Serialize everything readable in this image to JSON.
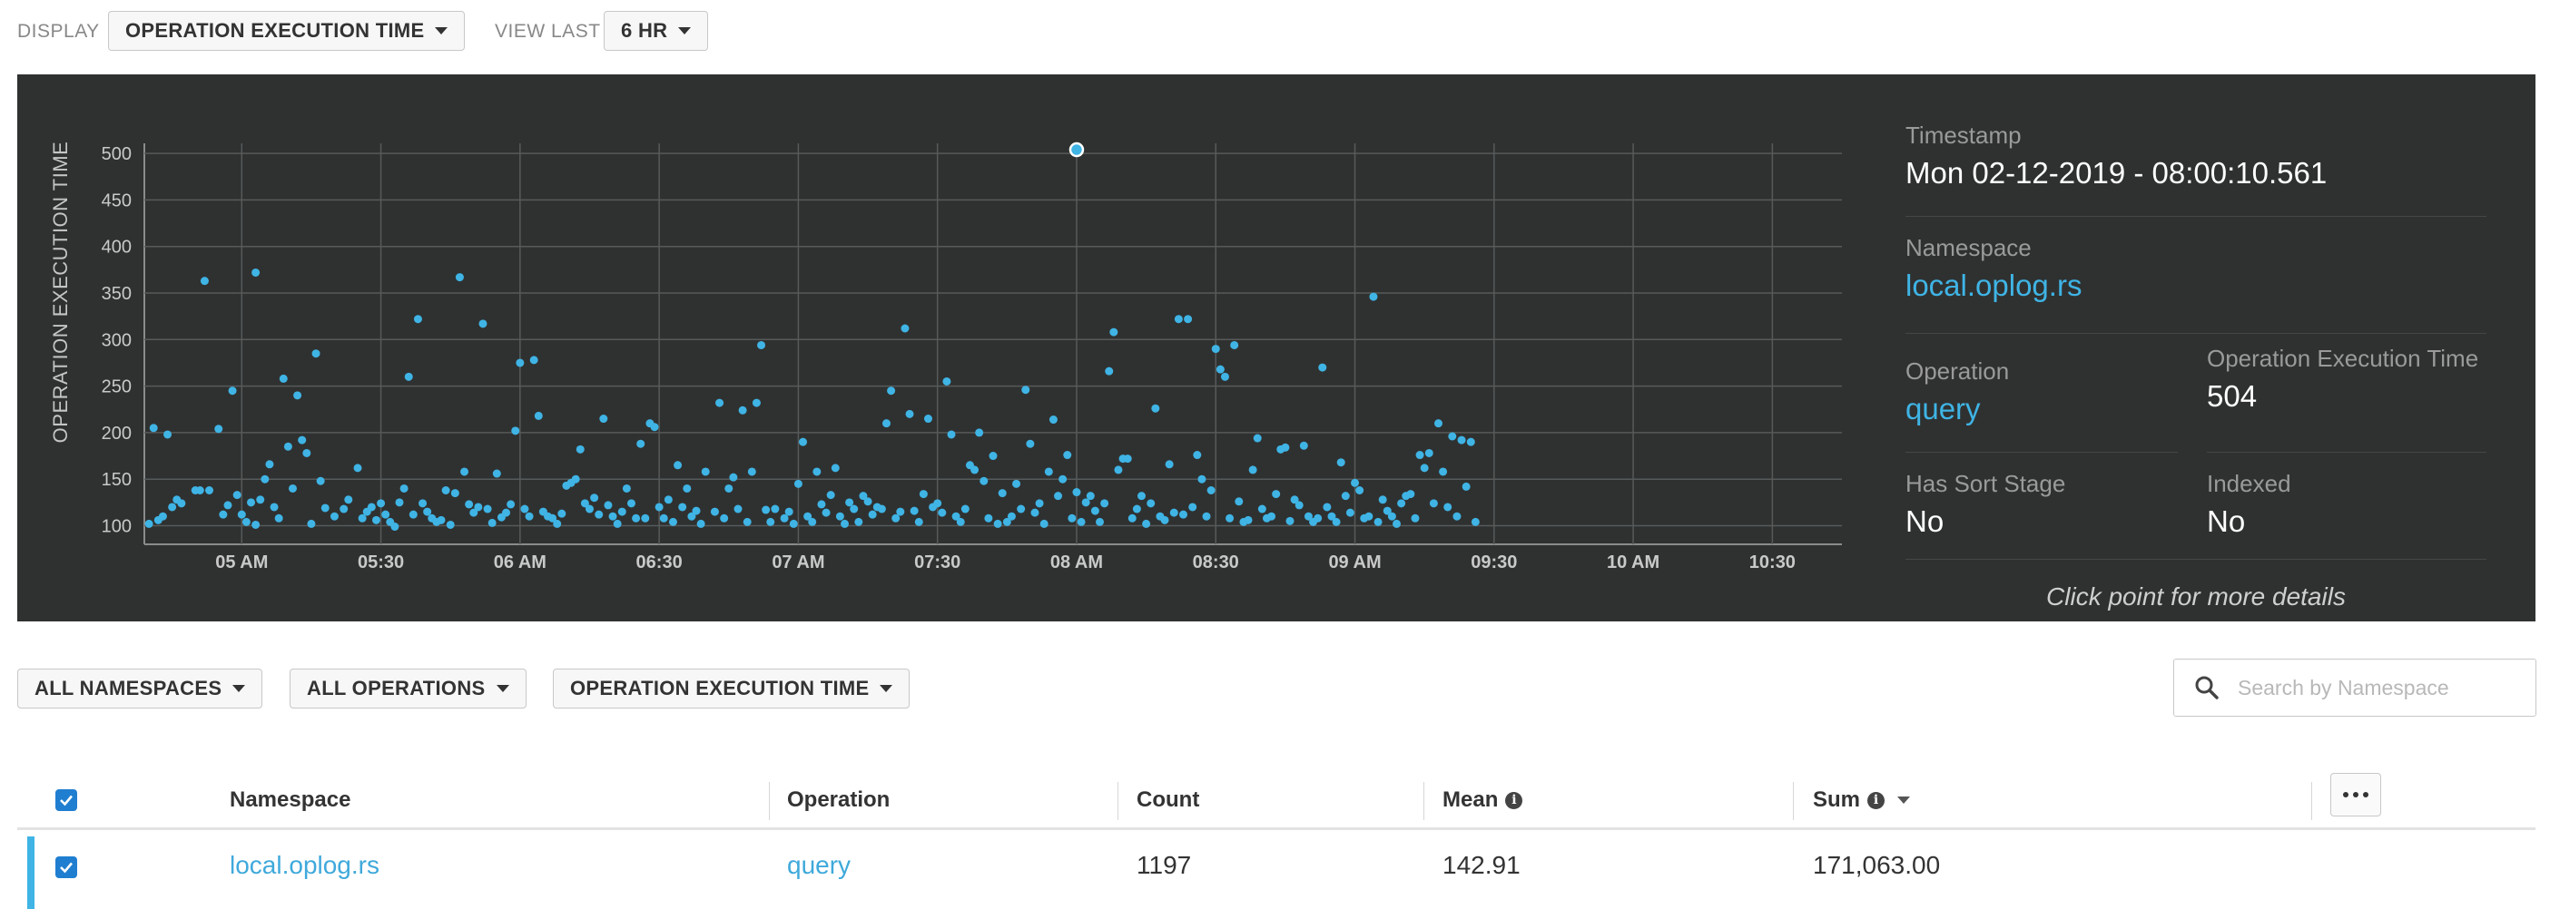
{
  "toolbar": {
    "display_label": "DISPLAY",
    "display_value": "OPERATION EXECUTION TIME",
    "view_last_label": "VIEW LAST",
    "view_last_value": "6 HR"
  },
  "chart_data": {
    "type": "scatter",
    "ylabel": "OPERATION EXECUTION TIME",
    "xlabel": "",
    "y_ticks": [
      "500",
      "450",
      "400",
      "350",
      "300",
      "250",
      "200",
      "150",
      "100"
    ],
    "x_ticks": [
      "05 AM",
      "05:30",
      "06 AM",
      "06:30",
      "07 AM",
      "07:30",
      "08 AM",
      "08:30",
      "09 AM",
      "09:30",
      "10 AM",
      "10:30"
    ],
    "ylim": [
      80,
      505
    ],
    "xlim": [
      "04:39",
      "10:45"
    ],
    "grid": true,
    "point_color": "#3fb4e5",
    "selected": {
      "x": "08:00",
      "y": 504
    },
    "points": [
      [
        "04:40",
        102
      ],
      [
        "04:41",
        205
      ],
      [
        "04:42",
        106
      ],
      [
        "04:43",
        110
      ],
      [
        "04:44",
        198
      ],
      [
        "04:45",
        120
      ],
      [
        "04:46",
        128
      ],
      [
        "04:47",
        124
      ],
      [
        "04:50",
        138
      ],
      [
        "04:51",
        138
      ],
      [
        "04:52",
        363
      ],
      [
        "04:53",
        138
      ],
      [
        "04:55",
        204
      ],
      [
        "04:56",
        112
      ],
      [
        "04:57",
        122
      ],
      [
        "04:58",
        245
      ],
      [
        "04:59",
        133
      ],
      [
        "05:00",
        112
      ],
      [
        "05:01",
        104
      ],
      [
        "05:02",
        125
      ],
      [
        "05:03",
        372
      ],
      [
        "05:03",
        101
      ],
      [
        "05:04",
        128
      ],
      [
        "05:05",
        150
      ],
      [
        "05:06",
        166
      ],
      [
        "05:07",
        120
      ],
      [
        "05:08",
        108
      ],
      [
        "05:09",
        258
      ],
      [
        "05:10",
        185
      ],
      [
        "05:11",
        140
      ],
      [
        "05:12",
        240
      ],
      [
        "05:13",
        192
      ],
      [
        "05:14",
        178
      ],
      [
        "05:15",
        102
      ],
      [
        "05:16",
        285
      ],
      [
        "05:17",
        148
      ],
      [
        "05:18",
        119
      ],
      [
        "05:20",
        110
      ],
      [
        "05:22",
        118
      ],
      [
        "05:23",
        128
      ],
      [
        "05:25",
        162
      ],
      [
        "05:26",
        108
      ],
      [
        "05:27",
        115
      ],
      [
        "05:28",
        120
      ],
      [
        "05:29",
        106
      ],
      [
        "05:30",
        124
      ],
      [
        "05:31",
        112
      ],
      [
        "05:32",
        104
      ],
      [
        "05:33",
        99
      ],
      [
        "05:34",
        125
      ],
      [
        "05:35",
        140
      ],
      [
        "05:36",
        260
      ],
      [
        "05:37",
        112
      ],
      [
        "05:38",
        322
      ],
      [
        "05:39",
        124
      ],
      [
        "05:40",
        115
      ],
      [
        "05:41",
        108
      ],
      [
        "05:42",
        104
      ],
      [
        "05:43",
        106
      ],
      [
        "05:44",
        138
      ],
      [
        "05:45",
        101
      ],
      [
        "05:46",
        135
      ],
      [
        "05:47",
        367
      ],
      [
        "05:48",
        158
      ],
      [
        "05:49",
        123
      ],
      [
        "05:50",
        114
      ],
      [
        "05:51",
        120
      ],
      [
        "05:52",
        317
      ],
      [
        "05:53",
        118
      ],
      [
        "05:54",
        103
      ],
      [
        "05:55",
        156
      ],
      [
        "05:56",
        109
      ],
      [
        "05:57",
        114
      ],
      [
        "05:58",
        123
      ],
      [
        "05:59",
        202
      ],
      [
        "06:00",
        275
      ],
      [
        "06:01",
        118
      ],
      [
        "06:02",
        110
      ],
      [
        "06:03",
        278
      ],
      [
        "06:04",
        218
      ],
      [
        "06:05",
        115
      ],
      [
        "06:06",
        110
      ],
      [
        "06:07",
        108
      ],
      [
        "06:08",
        102
      ],
      [
        "06:09",
        113
      ],
      [
        "06:10",
        143
      ],
      [
        "06:11",
        146
      ],
      [
        "06:12",
        150
      ],
      [
        "06:13",
        182
      ],
      [
        "06:14",
        124
      ],
      [
        "06:15",
        118
      ],
      [
        "06:16",
        130
      ],
      [
        "06:17",
        112
      ],
      [
        "06:18",
        215
      ],
      [
        "06:19",
        122
      ],
      [
        "06:20",
        110
      ],
      [
        "06:21",
        102
      ],
      [
        "06:22",
        115
      ],
      [
        "06:23",
        140
      ],
      [
        "06:24",
        124
      ],
      [
        "06:25",
        108
      ],
      [
        "06:26",
        188
      ],
      [
        "06:27",
        108
      ],
      [
        "06:28",
        210
      ],
      [
        "06:29",
        206
      ],
      [
        "06:30",
        120
      ],
      [
        "06:31",
        108
      ],
      [
        "06:32",
        128
      ],
      [
        "06:33",
        104
      ],
      [
        "06:34",
        165
      ],
      [
        "06:35",
        120
      ],
      [
        "06:36",
        140
      ],
      [
        "06:37",
        110
      ],
      [
        "06:38",
        116
      ],
      [
        "06:39",
        102
      ],
      [
        "06:40",
        158
      ],
      [
        "06:42",
        115
      ],
      [
        "06:43",
        232
      ],
      [
        "06:44",
        108
      ],
      [
        "06:45",
        140
      ],
      [
        "06:46",
        152
      ],
      [
        "06:47",
        118
      ],
      [
        "06:48",
        224
      ],
      [
        "06:49",
        104
      ],
      [
        "06:50",
        158
      ],
      [
        "06:51",
        232
      ],
      [
        "06:52",
        294
      ],
      [
        "06:53",
        117
      ],
      [
        "06:54",
        104
      ],
      [
        "06:55",
        118
      ],
      [
        "06:57",
        108
      ],
      [
        "06:58",
        115
      ],
      [
        "06:59",
        102
      ],
      [
        "07:00",
        145
      ],
      [
        "07:01",
        190
      ],
      [
        "07:02",
        110
      ],
      [
        "07:03",
        104
      ],
      [
        "07:04",
        158
      ],
      [
        "07:05",
        123
      ],
      [
        "07:06",
        114
      ],
      [
        "07:07",
        133
      ],
      [
        "07:08",
        162
      ],
      [
        "07:09",
        110
      ],
      [
        "07:10",
        102
      ],
      [
        "07:11",
        125
      ],
      [
        "07:12",
        118
      ],
      [
        "07:13",
        104
      ],
      [
        "07:14",
        132
      ],
      [
        "07:15",
        126
      ],
      [
        "07:16",
        112
      ],
      [
        "07:17",
        120
      ],
      [
        "07:18",
        118
      ],
      [
        "07:19",
        210
      ],
      [
        "07:20",
        245
      ],
      [
        "07:21",
        108
      ],
      [
        "07:22",
        115
      ],
      [
        "07:23",
        312
      ],
      [
        "07:24",
        220
      ],
      [
        "07:25",
        116
      ],
      [
        "07:26",
        104
      ],
      [
        "07:27",
        134
      ],
      [
        "07:28",
        215
      ],
      [
        "07:29",
        120
      ],
      [
        "07:30",
        124
      ],
      [
        "07:31",
        114
      ],
      [
        "07:32",
        255
      ],
      [
        "07:33",
        198
      ],
      [
        "07:34",
        110
      ],
      [
        "07:35",
        104
      ],
      [
        "07:36",
        118
      ],
      [
        "07:37",
        165
      ],
      [
        "07:38",
        160
      ],
      [
        "07:39",
        200
      ],
      [
        "07:40",
        148
      ],
      [
        "07:41",
        108
      ],
      [
        "07:42",
        175
      ],
      [
        "07:43",
        102
      ],
      [
        "07:44",
        135
      ],
      [
        "07:45",
        104
      ],
      [
        "07:46",
        110
      ],
      [
        "07:47",
        145
      ],
      [
        "07:48",
        118
      ],
      [
        "07:49",
        246
      ],
      [
        "07:50",
        188
      ],
      [
        "07:51",
        114
      ],
      [
        "07:52",
        124
      ],
      [
        "07:53",
        102
      ],
      [
        "07:54",
        158
      ],
      [
        "07:55",
        214
      ],
      [
        "07:56",
        132
      ],
      [
        "07:57",
        150
      ],
      [
        "07:58",
        176
      ],
      [
        "07:59",
        108
      ],
      [
        "08:00",
        136
      ],
      [
        "08:00",
        504
      ],
      [
        "08:01",
        104
      ],
      [
        "08:02",
        125
      ],
      [
        "08:03",
        132
      ],
      [
        "08:04",
        116
      ],
      [
        "08:05",
        104
      ],
      [
        "08:06",
        124
      ],
      [
        "08:07",
        266
      ],
      [
        "08:08",
        308
      ],
      [
        "08:09",
        160
      ],
      [
        "08:10",
        172
      ],
      [
        "08:11",
        172
      ],
      [
        "08:12",
        108
      ],
      [
        "08:13",
        118
      ],
      [
        "08:14",
        132
      ],
      [
        "08:15",
        102
      ],
      [
        "08:16",
        124
      ],
      [
        "08:17",
        226
      ],
      [
        "08:18",
        110
      ],
      [
        "08:19",
        106
      ],
      [
        "08:20",
        166
      ],
      [
        "08:21",
        114
      ],
      [
        "08:22",
        322
      ],
      [
        "08:23",
        112
      ],
      [
        "08:24",
        322
      ],
      [
        "08:25",
        120
      ],
      [
        "08:26",
        176
      ],
      [
        "08:27",
        150
      ],
      [
        "08:28",
        110
      ],
      [
        "08:29",
        138
      ],
      [
        "08:30",
        290
      ],
      [
        "08:31",
        268
      ],
      [
        "08:32",
        260
      ],
      [
        "08:33",
        108
      ],
      [
        "08:34",
        294
      ],
      [
        "08:35",
        126
      ],
      [
        "08:36",
        104
      ],
      [
        "08:37",
        106
      ],
      [
        "08:38",
        160
      ],
      [
        "08:39",
        194
      ],
      [
        "08:40",
        118
      ],
      [
        "08:41",
        108
      ],
      [
        "08:42",
        110
      ],
      [
        "08:43",
        134
      ],
      [
        "08:44",
        182
      ],
      [
        "08:45",
        184
      ],
      [
        "08:46",
        105
      ],
      [
        "08:47",
        128
      ],
      [
        "08:48",
        122
      ],
      [
        "08:49",
        186
      ],
      [
        "08:50",
        110
      ],
      [
        "08:51",
        104
      ],
      [
        "08:52",
        108
      ],
      [
        "08:53",
        270
      ],
      [
        "08:54",
        120
      ],
      [
        "08:55",
        110
      ],
      [
        "08:56",
        104
      ],
      [
        "08:57",
        168
      ],
      [
        "08:58",
        132
      ],
      [
        "08:59",
        114
      ],
      [
        "09:00",
        146
      ],
      [
        "09:01",
        138
      ],
      [
        "09:02",
        108
      ],
      [
        "09:03",
        110
      ],
      [
        "09:04",
        346
      ],
      [
        "09:05",
        104
      ],
      [
        "09:06",
        128
      ],
      [
        "09:07",
        116
      ],
      [
        "09:08",
        110
      ],
      [
        "09:09",
        102
      ],
      [
        "09:10",
        124
      ],
      [
        "09:11",
        132
      ],
      [
        "09:12",
        134
      ],
      [
        "09:13",
        108
      ],
      [
        "09:14",
        176
      ],
      [
        "09:15",
        162
      ],
      [
        "09:16",
        178
      ],
      [
        "09:17",
        124
      ],
      [
        "09:18",
        210
      ],
      [
        "09:19",
        158
      ],
      [
        "09:20",
        120
      ],
      [
        "09:21",
        196
      ],
      [
        "09:22",
        110
      ],
      [
        "09:23",
        192
      ],
      [
        "09:24",
        142
      ],
      [
        "09:25",
        190
      ],
      [
        "09:26",
        104
      ]
    ]
  },
  "details": {
    "timestamp_label": "Timestamp",
    "timestamp_value": "Mon 02-12-2019 - 08:00:10.561",
    "namespace_label": "Namespace",
    "namespace_value": "local.oplog.rs",
    "operation_label": "Operation",
    "operation_value": "query",
    "exec_time_label": "Operation Execution Time",
    "exec_time_value": "504",
    "sort_label": "Has Sort Stage",
    "sort_value": "No",
    "indexed_label": "Indexed",
    "indexed_value": "No",
    "hint": "Click point for more details"
  },
  "filters": {
    "namespaces": "ALL NAMESPACES",
    "operations": "ALL OPERATIONS",
    "metric": "OPERATION EXECUTION TIME",
    "search_placeholder": "Search by Namespace"
  },
  "table": {
    "headers": {
      "namespace": "Namespace",
      "operation": "Operation",
      "count": "Count",
      "mean": "Mean",
      "sum": "Sum"
    },
    "rows": [
      {
        "namespace": "local.oplog.rs",
        "operation": "query",
        "count": "1197",
        "mean": "142.91",
        "sum": "171,063.00"
      }
    ]
  }
}
